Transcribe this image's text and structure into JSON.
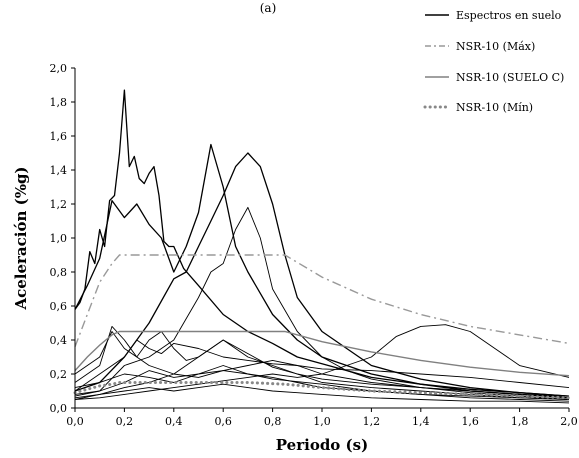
{
  "chart_data": {
    "type": "line",
    "title": "(a)",
    "xlabel": "Periodo (s)",
    "ylabel": "Aceleración (%g)",
    "xlim": [
      0,
      2
    ],
    "ylim": [
      0,
      2
    ],
    "x_ticks": [
      "0,0",
      "0,2",
      "0,4",
      "0,6",
      "0,8",
      "1,0",
      "1,2",
      "1,4",
      "1,6",
      "1,8",
      "2,0"
    ],
    "y_ticks": [
      "0,0",
      "0,2",
      "0,4",
      "0,6",
      "0,8",
      "1,0",
      "1,2",
      "1,4",
      "1,6",
      "1,8",
      "2,0"
    ],
    "grid": false,
    "legend_position": "top-right",
    "legend": [
      {
        "name": "Espectros en suelo",
        "style": "solid",
        "color": "#000000"
      },
      {
        "name": "NSR-10 (Máx)",
        "style": "dash-dot",
        "color": "#999999"
      },
      {
        "name": "NSR-10 (SUELO C)",
        "style": "solid",
        "color": "#808080"
      },
      {
        "name": "NSR-10 (Mín)",
        "style": "dotted",
        "color": "#888888"
      }
    ],
    "design_spectra": [
      {
        "name": "NSR-10 (Máx)",
        "style": "dash-dot",
        "color": "#999999",
        "x": [
          0.0,
          0.05,
          0.1,
          0.15,
          0.18,
          0.3,
          0.5,
          0.7,
          0.85,
          1.0,
          1.2,
          1.4,
          1.6,
          1.8,
          2.0
        ],
        "y": [
          0.36,
          0.55,
          0.74,
          0.85,
          0.9,
          0.9,
          0.9,
          0.9,
          0.9,
          0.77,
          0.64,
          0.55,
          0.48,
          0.43,
          0.38
        ]
      },
      {
        "name": "NSR-10 (SUELO C)",
        "style": "solid",
        "color": "#808080",
        "x": [
          0.0,
          0.05,
          0.1,
          0.15,
          0.18,
          0.3,
          0.5,
          0.7,
          0.85,
          1.0,
          1.2,
          1.4,
          1.6,
          1.8,
          2.0
        ],
        "y": [
          0.22,
          0.3,
          0.37,
          0.43,
          0.45,
          0.45,
          0.45,
          0.45,
          0.45,
          0.39,
          0.33,
          0.28,
          0.24,
          0.21,
          0.19
        ]
      },
      {
        "name": "NSR-10 (Mín)",
        "style": "dotted",
        "color": "#888888",
        "x": [
          0.0,
          0.05,
          0.1,
          0.15,
          0.18,
          0.3,
          0.5,
          0.7,
          0.85,
          1.0,
          1.2,
          1.4,
          1.6,
          1.8,
          2.0
        ],
        "y": [
          0.09,
          0.11,
          0.13,
          0.14,
          0.15,
          0.15,
          0.15,
          0.15,
          0.14,
          0.12,
          0.1,
          0.09,
          0.08,
          0.07,
          0.06
        ]
      }
    ],
    "ground_spectra": [
      {
        "x": [
          0.0,
          0.02,
          0.04,
          0.06,
          0.08,
          0.1,
          0.12,
          0.14,
          0.16,
          0.18,
          0.2,
          0.22,
          0.24,
          0.26,
          0.28,
          0.3,
          0.32,
          0.34,
          0.36,
          0.38,
          0.4,
          0.44,
          0.5,
          0.6,
          0.7,
          0.8,
          0.9,
          1.0,
          1.2,
          1.4,
          1.6,
          1.8,
          2.0
        ],
        "y": [
          0.58,
          0.62,
          0.7,
          0.92,
          0.85,
          1.05,
          0.95,
          1.22,
          1.25,
          1.5,
          1.87,
          1.42,
          1.48,
          1.35,
          1.32,
          1.38,
          1.42,
          1.25,
          0.98,
          0.95,
          0.95,
          0.82,
          0.72,
          0.55,
          0.45,
          0.38,
          0.3,
          0.26,
          0.18,
          0.14,
          0.11,
          0.09,
          0.07
        ]
      },
      {
        "x": [
          0.0,
          0.05,
          0.1,
          0.15,
          0.2,
          0.25,
          0.3,
          0.35,
          0.4,
          0.45,
          0.5,
          0.55,
          0.6,
          0.65,
          0.7,
          0.8,
          0.9,
          1.0,
          1.2,
          1.4,
          1.6,
          1.8,
          2.0
        ],
        "y": [
          0.58,
          0.72,
          0.88,
          1.22,
          1.12,
          1.2,
          1.08,
          1.0,
          0.8,
          0.95,
          1.15,
          1.55,
          1.3,
          0.95,
          0.8,
          0.55,
          0.4,
          0.3,
          0.2,
          0.14,
          0.1,
          0.08,
          0.06
        ]
      },
      {
        "x": [
          0.0,
          0.1,
          0.2,
          0.3,
          0.4,
          0.45,
          0.5,
          0.55,
          0.6,
          0.65,
          0.7,
          0.75,
          0.8,
          0.85,
          0.9,
          1.0,
          1.1,
          1.2,
          1.4,
          1.6,
          1.8,
          2.0
        ],
        "y": [
          0.1,
          0.15,
          0.3,
          0.5,
          0.76,
          0.8,
          0.95,
          1.1,
          1.25,
          1.42,
          1.5,
          1.42,
          1.2,
          0.9,
          0.65,
          0.45,
          0.35,
          0.25,
          0.17,
          0.12,
          0.09,
          0.07
        ]
      },
      {
        "x": [
          0.0,
          0.1,
          0.2,
          0.3,
          0.4,
          0.5,
          0.55,
          0.6,
          0.65,
          0.7,
          0.75,
          0.8,
          0.9,
          1.0,
          1.1,
          1.2,
          1.4,
          1.6,
          1.8,
          2.0
        ],
        "y": [
          0.07,
          0.1,
          0.25,
          0.3,
          0.4,
          0.65,
          0.8,
          0.85,
          1.05,
          1.18,
          1.0,
          0.7,
          0.45,
          0.3,
          0.22,
          0.17,
          0.12,
          0.09,
          0.07,
          0.05
        ]
      },
      {
        "x": [
          0.0,
          0.1,
          0.2,
          0.3,
          0.4,
          0.5,
          0.6,
          0.7,
          0.8,
          0.9,
          1.0,
          1.1,
          1.2,
          1.3,
          1.4,
          1.5,
          1.6,
          1.7,
          1.8,
          2.0
        ],
        "y": [
          0.05,
          0.06,
          0.08,
          0.1,
          0.12,
          0.14,
          0.16,
          0.18,
          0.2,
          0.18,
          0.2,
          0.25,
          0.3,
          0.42,
          0.48,
          0.49,
          0.45,
          0.35,
          0.25,
          0.18
        ]
      },
      {
        "x": [
          0.0,
          0.1,
          0.15,
          0.2,
          0.25,
          0.3,
          0.35,
          0.4,
          0.45,
          0.5,
          0.6,
          0.7,
          0.8,
          0.9,
          1.0,
          1.2,
          1.4,
          1.6,
          1.8,
          2.0
        ],
        "y": [
          0.2,
          0.3,
          0.45,
          0.35,
          0.3,
          0.4,
          0.45,
          0.35,
          0.28,
          0.3,
          0.4,
          0.32,
          0.24,
          0.2,
          0.17,
          0.14,
          0.12,
          0.1,
          0.08,
          0.07
        ]
      },
      {
        "x": [
          0.0,
          0.1,
          0.2,
          0.25,
          0.3,
          0.35,
          0.4,
          0.5,
          0.6,
          0.7,
          0.8,
          0.9,
          1.0,
          1.2,
          1.4,
          1.6,
          1.8,
          2.0
        ],
        "y": [
          0.1,
          0.2,
          0.3,
          0.4,
          0.35,
          0.32,
          0.38,
          0.35,
          0.3,
          0.28,
          0.26,
          0.25,
          0.23,
          0.22,
          0.2,
          0.18,
          0.15,
          0.12
        ]
      },
      {
        "x": [
          0.0,
          0.1,
          0.2,
          0.3,
          0.4,
          0.5,
          0.55,
          0.6,
          0.7,
          0.8,
          0.9,
          1.0,
          1.2,
          1.4,
          1.6,
          1.8,
          2.0
        ],
        "y": [
          0.05,
          0.08,
          0.12,
          0.15,
          0.2,
          0.3,
          0.35,
          0.4,
          0.3,
          0.25,
          0.2,
          0.15,
          0.12,
          0.1,
          0.08,
          0.06,
          0.05
        ]
      },
      {
        "x": [
          0.0,
          0.1,
          0.2,
          0.3,
          0.4,
          0.5,
          0.6,
          0.7,
          0.8,
          0.9,
          1.0,
          1.2,
          1.4,
          1.6,
          1.8,
          2.0
        ],
        "y": [
          0.12,
          0.15,
          0.2,
          0.18,
          0.15,
          0.2,
          0.22,
          0.25,
          0.28,
          0.25,
          0.2,
          0.15,
          0.12,
          0.1,
          0.08,
          0.07
        ]
      },
      {
        "x": [
          0.0,
          0.1,
          0.2,
          0.3,
          0.4,
          0.5,
          0.6,
          0.7,
          0.8,
          0.9,
          1.0,
          1.2,
          1.4,
          1.6,
          1.8,
          2.0
        ],
        "y": [
          0.06,
          0.08,
          0.1,
          0.12,
          0.1,
          0.12,
          0.14,
          0.12,
          0.1,
          0.09,
          0.08,
          0.06,
          0.05,
          0.04,
          0.04,
          0.03
        ]
      },
      {
        "x": [
          0.0,
          0.1,
          0.2,
          0.3,
          0.4,
          0.5,
          0.6,
          0.7,
          0.8,
          0.9,
          1.0,
          1.2,
          1.4,
          1.6,
          1.8,
          2.0
        ],
        "y": [
          0.08,
          0.1,
          0.15,
          0.22,
          0.18,
          0.2,
          0.25,
          0.2,
          0.18,
          0.15,
          0.12,
          0.1,
          0.08,
          0.07,
          0.06,
          0.05
        ]
      },
      {
        "x": [
          0.0,
          0.1,
          0.15,
          0.2,
          0.25,
          0.3,
          0.4,
          0.5,
          0.6,
          0.7,
          0.8,
          1.0,
          1.2,
          1.4,
          1.6,
          1.8,
          2.0
        ],
        "y": [
          0.15,
          0.25,
          0.48,
          0.4,
          0.3,
          0.25,
          0.2,
          0.18,
          0.22,
          0.2,
          0.17,
          0.14,
          0.1,
          0.08,
          0.06,
          0.05,
          0.04
        ]
      }
    ]
  }
}
